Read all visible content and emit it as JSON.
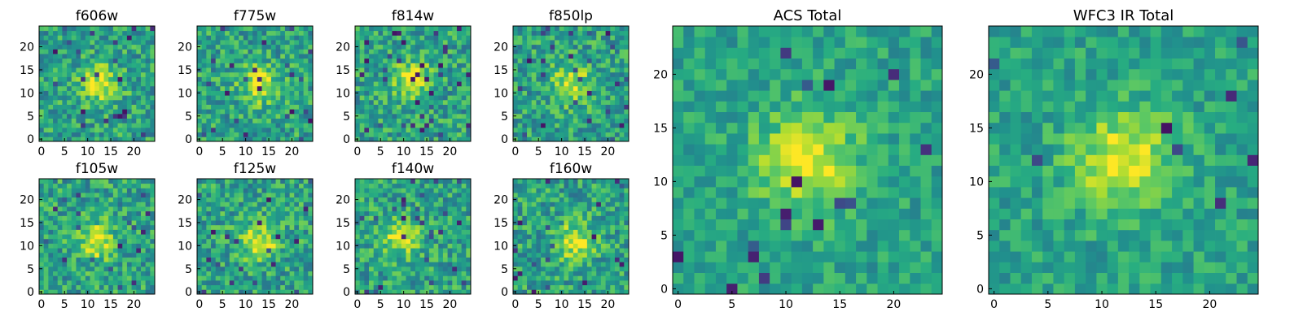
{
  "chart_data": [
    {
      "type": "heatmap",
      "title": "f606w",
      "xlabel": "",
      "ylabel": "",
      "xlim": [
        -0.5,
        24.5
      ],
      "ylim": [
        -0.5,
        24.5
      ],
      "xticks": [
        0,
        5,
        10,
        15,
        20
      ],
      "yticks": [
        0,
        5,
        10,
        15,
        20
      ],
      "grid_size": 25,
      "blob_center": [
        13,
        12
      ],
      "colormap": "viridis"
    },
    {
      "type": "heatmap",
      "title": "f775w",
      "xlabel": "",
      "ylabel": "",
      "xlim": [
        -0.5,
        24.5
      ],
      "ylim": [
        -0.5,
        24.5
      ],
      "xticks": [
        0,
        5,
        10,
        15,
        20
      ],
      "yticks": [
        0,
        5,
        10,
        15,
        20
      ],
      "grid_size": 25,
      "blob_center": [
        13,
        12
      ],
      "colormap": "viridis"
    },
    {
      "type": "heatmap",
      "title": "f814w",
      "xlabel": "",
      "ylabel": "",
      "xlim": [
        -0.5,
        24.5
      ],
      "ylim": [
        -0.5,
        24.5
      ],
      "xticks": [
        0,
        5,
        10,
        15,
        20
      ],
      "yticks": [
        0,
        5,
        10,
        15,
        20
      ],
      "grid_size": 25,
      "blob_center": [
        12,
        13
      ],
      "colormap": "viridis"
    },
    {
      "type": "heatmap",
      "title": "f850lp",
      "xlabel": "",
      "ylabel": "",
      "xlim": [
        -0.5,
        24.5
      ],
      "ylim": [
        -0.5,
        24.5
      ],
      "xticks": [
        0,
        5,
        10,
        15,
        20
      ],
      "yticks": [
        0,
        5,
        10,
        15,
        20
      ],
      "grid_size": 25,
      "blob_center": [
        12,
        12
      ],
      "colormap": "viridis"
    },
    {
      "type": "heatmap",
      "title": "f105w",
      "xlabel": "",
      "ylabel": "",
      "xlim": [
        -0.5,
        24.5
      ],
      "ylim": [
        -0.5,
        24.5
      ],
      "xticks": [
        0,
        5,
        10,
        15,
        20
      ],
      "yticks": [
        0,
        5,
        10,
        15,
        20
      ],
      "grid_size": 25,
      "blob_center": [
        12,
        11
      ],
      "colormap": "viridis"
    },
    {
      "type": "heatmap",
      "title": "f125w",
      "xlabel": "",
      "ylabel": "",
      "xlim": [
        -0.5,
        24.5
      ],
      "ylim": [
        -0.5,
        24.5
      ],
      "xticks": [
        0,
        5,
        10,
        15,
        20
      ],
      "yticks": [
        0,
        5,
        10,
        15,
        20
      ],
      "grid_size": 25,
      "blob_center": [
        13,
        11
      ],
      "colormap": "viridis"
    },
    {
      "type": "heatmap",
      "title": "f140w",
      "xlabel": "",
      "ylabel": "",
      "xlim": [
        -0.5,
        24.5
      ],
      "ylim": [
        -0.5,
        24.5
      ],
      "xticks": [
        0,
        5,
        10,
        15,
        20
      ],
      "yticks": [
        0,
        5,
        10,
        15,
        20
      ],
      "grid_size": 25,
      "blob_center": [
        9,
        12
      ],
      "colormap": "viridis"
    },
    {
      "type": "heatmap",
      "title": "f160w",
      "xlabel": "",
      "ylabel": "",
      "xlim": [
        -0.5,
        24.5
      ],
      "ylim": [
        -0.5,
        24.5
      ],
      "xticks": [
        0,
        5,
        10,
        15,
        20
      ],
      "yticks": [
        0,
        5,
        10,
        15,
        20
      ],
      "grid_size": 25,
      "blob_center": [
        13,
        11
      ],
      "colormap": "viridis"
    },
    {
      "type": "heatmap",
      "title": "ACS Total",
      "xlabel": "",
      "ylabel": "",
      "xlim": [
        -0.5,
        24.5
      ],
      "ylim": [
        -0.5,
        24.5
      ],
      "xticks": [
        0,
        5,
        10,
        15,
        20
      ],
      "yticks": [
        0,
        5,
        10,
        15,
        20
      ],
      "grid_size": 25,
      "blob_center": [
        12,
        12
      ],
      "colormap": "viridis"
    },
    {
      "type": "heatmap",
      "title": "WFC3 IR Total",
      "xlabel": "",
      "ylabel": "",
      "xlim": [
        -0.5,
        24.5
      ],
      "ylim": [
        -0.5,
        24.5
      ],
      "xticks": [
        0,
        5,
        10,
        15,
        20
      ],
      "yticks": [
        0,
        5,
        10,
        15,
        20
      ],
      "grid_size": 25,
      "blob_center": [
        12,
        12
      ],
      "colormap": "viridis"
    }
  ]
}
